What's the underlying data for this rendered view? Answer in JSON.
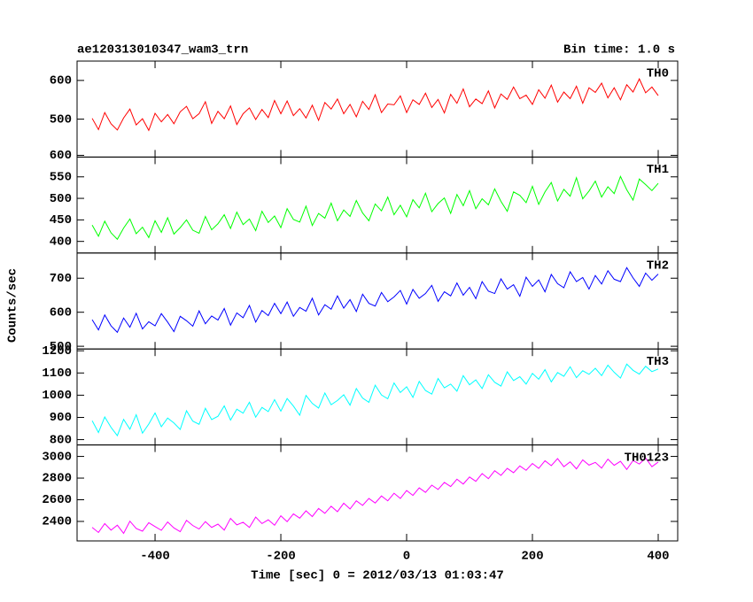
{
  "chart_data": {
    "type": "line",
    "title": "ae120313010347_wam3_trn",
    "subtitle": "Bin time: 1.0 s",
    "xlabel": "Time [sec] 0 = 2012/03/13 01:03:47",
    "ylabel": "Counts/sec",
    "xlim": [
      -524,
      431
    ],
    "xticks": [
      -400,
      -200,
      0,
      200,
      400
    ],
    "x": [
      -500,
      -490,
      -480,
      -470,
      -460,
      -450,
      -440,
      -430,
      -420,
      -410,
      -400,
      -390,
      -380,
      -370,
      -360,
      -350,
      -340,
      -330,
      -320,
      -310,
      -300,
      -290,
      -280,
      -270,
      -260,
      -250,
      -240,
      -230,
      -220,
      -210,
      -200,
      -190,
      -180,
      -170,
      -160,
      -150,
      -140,
      -130,
      -120,
      -110,
      -100,
      -90,
      -80,
      -70,
      -60,
      -50,
      -40,
      -30,
      -20,
      -10,
      0,
      10,
      20,
      30,
      40,
      50,
      60,
      70,
      80,
      90,
      100,
      110,
      120,
      130,
      140,
      150,
      160,
      170,
      180,
      190,
      200,
      210,
      220,
      230,
      240,
      250,
      260,
      270,
      280,
      290,
      300,
      310,
      320,
      330,
      340,
      350,
      360,
      370,
      380,
      390,
      400
    ],
    "series": [
      {
        "name": "TH0",
        "color": "#ff0000",
        "ylim": [
          402,
          650
        ],
        "yticks": [
          500,
          600
        ],
        "values": [
          502,
          473,
          517,
          488,
          472,
          503,
          526,
          485,
          501,
          471,
          515,
          493,
          512,
          488,
          519,
          533,
          501,
          514,
          545,
          489,
          520,
          501,
          534,
          486,
          514,
          529,
          499,
          525,
          504,
          548,
          514,
          547,
          509,
          527,
          503,
          536,
          497,
          543,
          526,
          552,
          514,
          538,
          506,
          546,
          525,
          563,
          517,
          539,
          537,
          560,
          517,
          550,
          538,
          567,
          530,
          551,
          516,
          564,
          541,
          578,
          532,
          552,
          540,
          573,
          529,
          565,
          551,
          583,
          553,
          562,
          538,
          576,
          554,
          588,
          544,
          570,
          553,
          585,
          541,
          581,
          569,
          593,
          555,
          581,
          550,
          589,
          570,
          604,
          568,
          583,
          561
        ]
      },
      {
        "name": "TH1",
        "color": "#00ff00",
        "ylim": [
          373,
          596
        ],
        "yticks": [
          400,
          450,
          500,
          550,
          600
        ],
        "values": [
          438,
          412,
          447,
          420,
          405,
          431,
          452,
          418,
          433,
          409,
          448,
          421,
          455,
          417,
          432,
          450,
          426,
          419,
          458,
          427,
          441,
          462,
          430,
          468,
          439,
          452,
          425,
          470,
          444,
          459,
          432,
          476,
          451,
          445,
          482,
          437,
          465,
          454,
          489,
          448,
          473,
          458,
          495,
          466,
          448,
          487,
          471,
          503,
          462,
          484,
          457,
          497,
          478,
          512,
          469,
          488,
          501,
          465,
          509,
          483,
          518,
          476,
          499,
          485,
          522,
          493,
          470,
          515,
          507,
          490,
          528,
          486,
          515,
          537,
          494,
          521,
          505,
          548,
          499,
          517,
          540,
          503,
          527,
          511,
          551,
          520,
          496,
          545,
          532,
          518,
          535
        ]
      },
      {
        "name": "TH2",
        "color": "#0000ff",
        "ylim": [
          492,
          774
        ],
        "yticks": [
          500,
          600,
          700
        ],
        "values": [
          578,
          548,
          592,
          560,
          541,
          583,
          556,
          597,
          551,
          572,
          560,
          596,
          571,
          543,
          588,
          575,
          559,
          604,
          566,
          589,
          577,
          611,
          562,
          598,
          584,
          620,
          571,
          605,
          590,
          626,
          596,
          630,
          588,
          614,
          603,
          641,
          592,
          622,
          609,
          648,
          612,
          637,
          602,
          653,
          626,
          618,
          658,
          631,
          645,
          664,
          624,
          667,
          641,
          655,
          679,
          632,
          660,
          648,
          686,
          650,
          673,
          640,
          690,
          662,
          655,
          698,
          668,
          681,
          647,
          703,
          676,
          695,
          660,
          711,
          684,
          672,
          719,
          690,
          702,
          668,
          708,
          683,
          722,
          697,
          690,
          731,
          701,
          676,
          715,
          694,
          712
        ]
      },
      {
        "name": "TH3",
        "color": "#00ffff",
        "ylim": [
          776,
          1208
        ],
        "yticks": [
          800,
          900,
          1000,
          1100,
          1200
        ],
        "values": [
          885,
          832,
          902,
          855,
          818,
          891,
          847,
          912,
          829,
          870,
          920,
          858,
          897,
          875,
          846,
          930,
          883,
          869,
          941,
          890,
          905,
          952,
          888,
          937,
          919,
          968,
          901,
          945,
          926,
          980,
          928,
          985,
          951,
          910,
          999,
          963,
          942,
          1010,
          957,
          976,
          1002,
          955,
          1030,
          987,
          968,
          1045,
          1001,
          984,
          1055,
          1012,
          1038,
          990,
          1062,
          1021,
          1005,
          1075,
          1033,
          1050,
          1018,
          1088,
          1047,
          1069,
          1030,
          1092,
          1058,
          1041,
          1105,
          1066,
          1083,
          1050,
          1098,
          1072,
          1115,
          1060,
          1102,
          1085,
          1128,
          1079,
          1110,
          1094,
          1121,
          1088,
          1135,
          1103,
          1077,
          1140,
          1112,
          1095,
          1130,
          1106,
          1118
        ]
      },
      {
        "name": "TH0123",
        "color": "#ff00ff",
        "ylim": [
          2220,
          3106
        ],
        "yticks": [
          2400,
          2600,
          2800,
          3000
        ],
        "values": [
          2345,
          2298,
          2380,
          2320,
          2365,
          2290,
          2402,
          2335,
          2310,
          2388,
          2352,
          2318,
          2395,
          2340,
          2305,
          2410,
          2362,
          2330,
          2398,
          2345,
          2375,
          2320,
          2428,
          2368,
          2392,
          2345,
          2440,
          2380,
          2415,
          2365,
          2452,
          2398,
          2470,
          2430,
          2498,
          2445,
          2520,
          2475,
          2540,
          2490,
          2568,
          2515,
          2590,
          2548,
          2612,
          2570,
          2635,
          2590,
          2660,
          2612,
          2685,
          2640,
          2710,
          2668,
          2735,
          2695,
          2760,
          2722,
          2790,
          2745,
          2810,
          2770,
          2842,
          2795,
          2868,
          2825,
          2890,
          2850,
          2912,
          2872,
          2935,
          2890,
          2960,
          2915,
          2980,
          2905,
          2950,
          2885,
          2968,
          2920,
          2945,
          2892,
          2975,
          2918,
          2955,
          2880,
          2962,
          2930,
          2985,
          2905,
          2948
        ]
      }
    ]
  }
}
